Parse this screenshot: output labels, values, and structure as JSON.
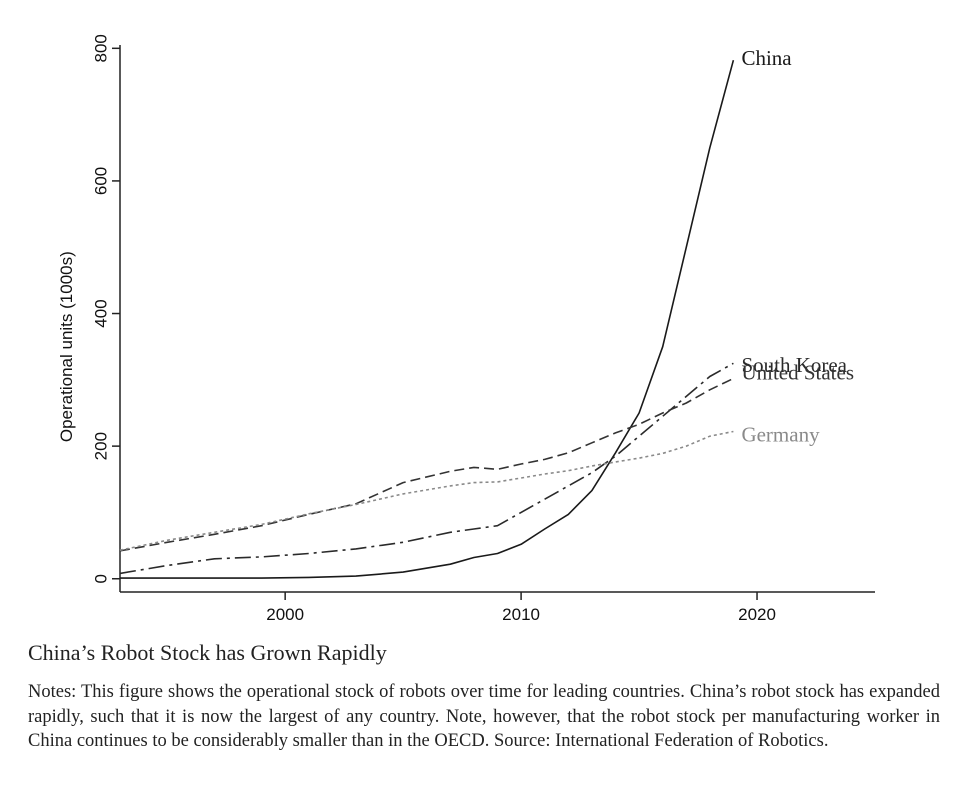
{
  "chart_data": {
    "type": "line",
    "xlabel": "",
    "ylabel": "Operational units (1000s)",
    "xlim": [
      1993,
      2025
    ],
    "ylim": [
      -20,
      805
    ],
    "x_ticks": [
      2000,
      2010,
      2020
    ],
    "y_ticks": [
      0,
      200,
      400,
      600,
      800
    ],
    "grid": false,
    "legend": "inline labels at line ends",
    "series": [
      {
        "name": "China",
        "style": "solid",
        "color": "#1a1a1a",
        "x": [
          1993,
          1995,
          1997,
          1999,
          2001,
          2003,
          2005,
          2007,
          2008,
          2009,
          2010,
          2011,
          2012,
          2013,
          2014,
          2015,
          2016,
          2017,
          2018,
          2019
        ],
        "y": [
          1,
          1,
          1,
          1,
          2,
          4,
          10,
          22,
          32,
          38,
          52,
          75,
          97,
          133,
          190,
          250,
          350,
          500,
          650,
          782
        ]
      },
      {
        "name": "South Korea",
        "style": "long-dash-dot",
        "color": "#2a2a2a",
        "x": [
          1993,
          1995,
          1997,
          1999,
          2001,
          2003,
          2005,
          2007,
          2008,
          2009,
          2010,
          2011,
          2012,
          2013,
          2014,
          2015,
          2016,
          2017,
          2018,
          2019
        ],
        "y": [
          8,
          20,
          30,
          33,
          38,
          45,
          55,
          70,
          75,
          80,
          100,
          120,
          140,
          160,
          185,
          215,
          245,
          275,
          305,
          325
        ]
      },
      {
        "name": "United States",
        "style": "dash",
        "color": "#333333",
        "x": [
          1993,
          1995,
          1997,
          1999,
          2001,
          2003,
          2005,
          2007,
          2008,
          2009,
          2010,
          2011,
          2012,
          2013,
          2014,
          2015,
          2016,
          2017,
          2018,
          2019
        ],
        "y": [
          42,
          55,
          67,
          80,
          97,
          113,
          145,
          162,
          168,
          165,
          173,
          180,
          190,
          205,
          220,
          233,
          250,
          265,
          285,
          302
        ]
      },
      {
        "name": "Germany",
        "style": "dot",
        "color": "#8a8a8a",
        "x": [
          1993,
          1995,
          1997,
          1999,
          2001,
          2003,
          2005,
          2007,
          2008,
          2009,
          2010,
          2011,
          2012,
          2013,
          2014,
          2015,
          2016,
          2017,
          2018,
          2019
        ],
        "y": [
          43,
          58,
          70,
          82,
          98,
          112,
          128,
          140,
          145,
          146,
          152,
          158,
          163,
          170,
          176,
          182,
          189,
          200,
          215,
          222
        ]
      }
    ]
  },
  "caption": {
    "title": "China’s Robot Stock has Grown Rapidly",
    "notes": "Notes: This figure shows the operational stock of robots over time for leading countries. China’s robot stock has expanded rapidly, such that it is now the largest of any country. Note, however, that the robot stock per manufacturing worker in China continues to be considerably smaller than in the OECD. Source: International Federation of Robotics."
  }
}
